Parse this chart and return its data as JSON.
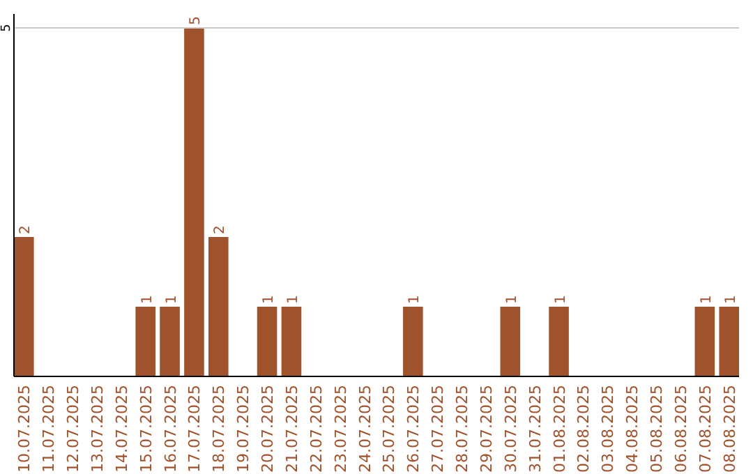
{
  "chart_data": {
    "type": "bar",
    "categories": [
      "10.07.2025",
      "11.07.2025",
      "12.07.2025",
      "13.07.2025",
      "14.07.2025",
      "15.07.2025",
      "16.07.2025",
      "17.07.2025",
      "18.07.2025",
      "19.07.2025",
      "20.07.2025",
      "21.07.2025",
      "22.07.2025",
      "23.07.2025",
      "24.07.2025",
      "25.07.2025",
      "26.07.2025",
      "27.07.2025",
      "28.07.2025",
      "29.07.2025",
      "30.07.2025",
      "31.07.2025",
      "01.08.2025",
      "02.08.2025",
      "03.08.2025",
      "04.08.2025",
      "05.08.2025",
      "06.08.2025",
      "07.08.2025",
      "08.08.2025"
    ],
    "values": [
      2,
      0,
      0,
      0,
      0,
      1,
      1,
      5,
      2,
      0,
      1,
      1,
      0,
      0,
      0,
      0,
      1,
      0,
      0,
      0,
      1,
      0,
      1,
      0,
      0,
      0,
      0,
      0,
      1,
      1
    ],
    "value_labels": [
      "2",
      null,
      null,
      null,
      null,
      "1",
      "1",
      "5",
      "2",
      null,
      "1",
      "1",
      null,
      null,
      null,
      null,
      "1",
      null,
      null,
      null,
      "1",
      null,
      "1",
      null,
      null,
      null,
      null,
      null,
      "1",
      "1"
    ],
    "color": "#a0522d",
    "ylim": [
      0,
      5.2
    ],
    "yticks": [
      5
    ],
    "grid": "y"
  }
}
